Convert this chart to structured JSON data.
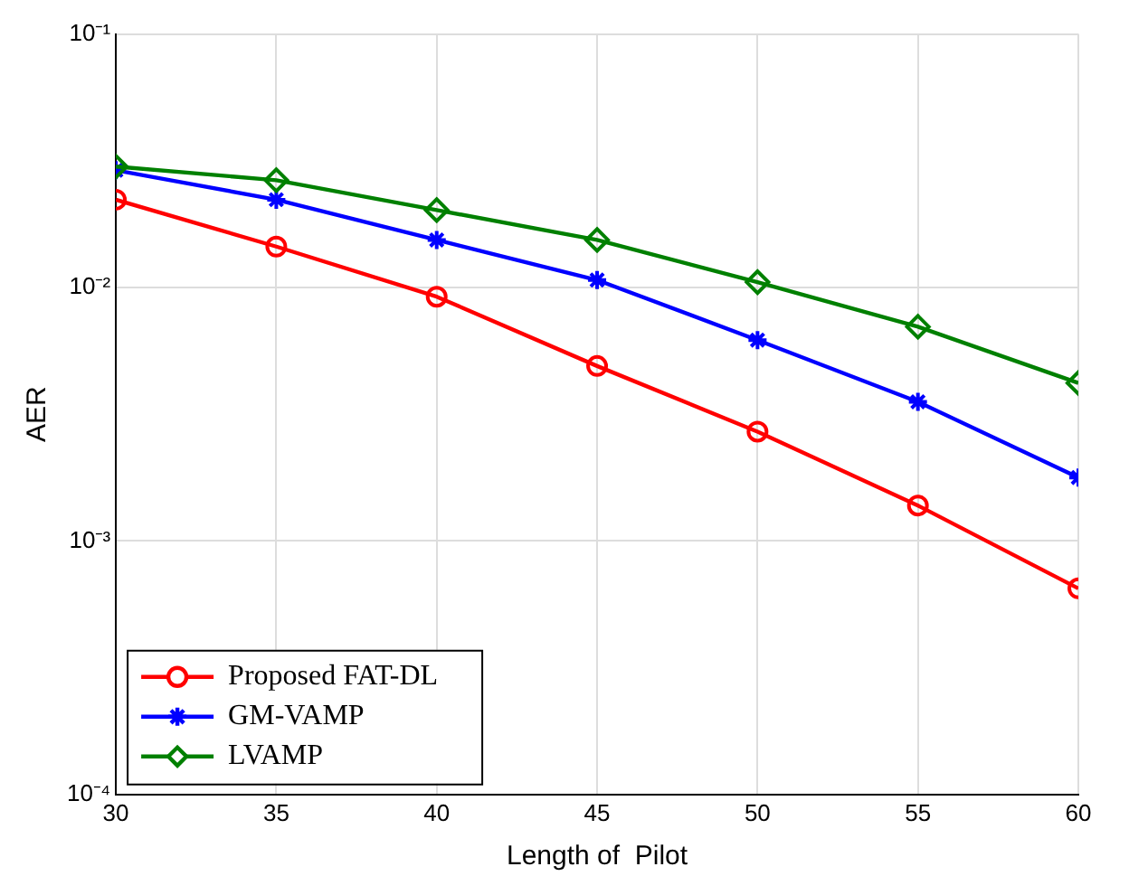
{
  "chart_data": {
    "type": "line",
    "xlabel": "Length of  Pilot",
    "ylabel": "AER",
    "x": [
      30,
      35,
      40,
      45,
      50,
      55,
      60
    ],
    "series": [
      {
        "name": "Proposed FAT-DL",
        "color": "#ff0000",
        "marker": "circle",
        "values": [
          0.0222,
          0.0145,
          0.0092,
          0.0049,
          0.0027,
          0.00138,
          0.00065
        ]
      },
      {
        "name": "GM-VAMP",
        "color": "#0000ff",
        "marker": "cross",
        "values": [
          0.029,
          0.0222,
          0.0154,
          0.0107,
          0.0062,
          0.00354,
          0.00178
        ]
      },
      {
        "name": "LVAMP",
        "color": "#008000",
        "marker": "diamond",
        "values": [
          0.03,
          0.0265,
          0.0202,
          0.0154,
          0.0105,
          0.007,
          0.0042
        ]
      }
    ],
    "xlim": [
      30,
      60
    ],
    "xticks": [
      30,
      35,
      40,
      45,
      50,
      55,
      60
    ],
    "ylim": [
      0.0001,
      0.1
    ],
    "yticks": [
      {
        "value": 0.0001,
        "label": "10⁻⁴"
      },
      {
        "value": 0.001,
        "label": "10⁻³"
      },
      {
        "value": 0.01,
        "label": "10⁻²"
      },
      {
        "value": 0.1,
        "label": "10⁻¹"
      }
    ],
    "log": "y",
    "grid": true,
    "legend": "bottom left",
    "line_style": "solid"
  }
}
